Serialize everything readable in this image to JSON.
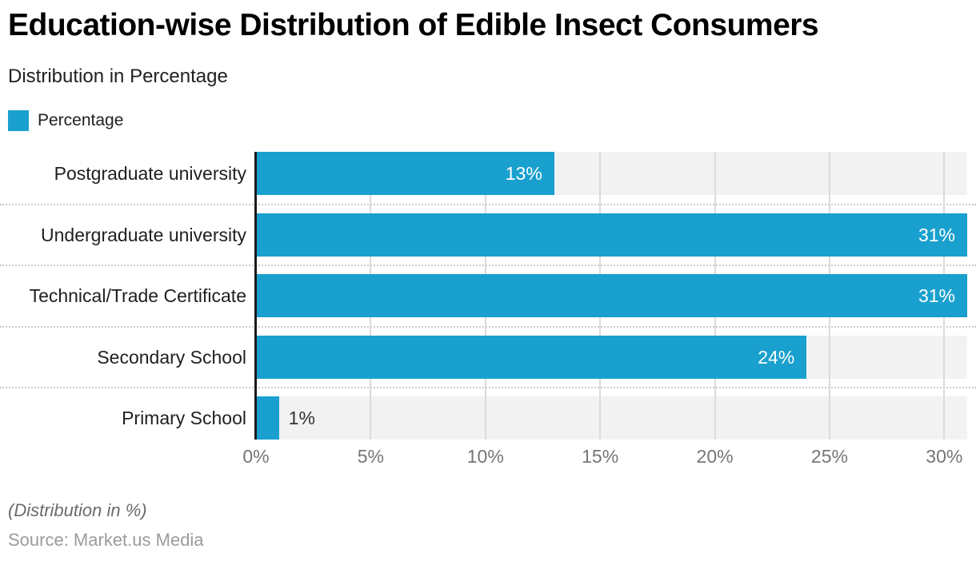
{
  "header": {
    "title": "Education-wise Distribution of Edible Insect Consumers",
    "subtitle": "Distribution in Percentage"
  },
  "legend": {
    "label": "Percentage"
  },
  "chart_data": {
    "type": "bar",
    "orientation": "horizontal",
    "title": "Education-wise Distribution of Edible Insect Consumers",
    "subtitle": "Distribution in Percentage",
    "legend_entries": [
      "Percentage"
    ],
    "legend_position": "top-left",
    "categories": [
      "Postgraduate university",
      "Undergraduate university",
      "Technical/Trade Certificate",
      "Secondary School",
      "Primary School"
    ],
    "values": [
      13,
      31,
      31,
      24,
      1
    ],
    "value_labels": [
      "13%",
      "31%",
      "31%",
      "24%",
      "1%"
    ],
    "xlabel": "",
    "ylabel": "",
    "xtick_values": [
      0,
      5,
      10,
      15,
      20,
      25,
      30
    ],
    "xtick_labels": [
      "0%",
      "5%",
      "10%",
      "15%",
      "20%",
      "25%",
      "30%"
    ],
    "xlim": [
      0,
      31
    ],
    "grid": true,
    "colors": {
      "bar": "#19A0CE",
      "track": "#F2F2F2",
      "gridline": "#DBDBDB",
      "separator": "#CCCCCC",
      "axis": "#1A1A1A",
      "tick_text": "#757575",
      "category_text": "#1F1F1F",
      "value_text_inside": "#FFFFFF",
      "value_text_outside": "#333333"
    }
  },
  "footer": {
    "note": "(Distribution in %)",
    "source": "Source: Market.us Media"
  }
}
